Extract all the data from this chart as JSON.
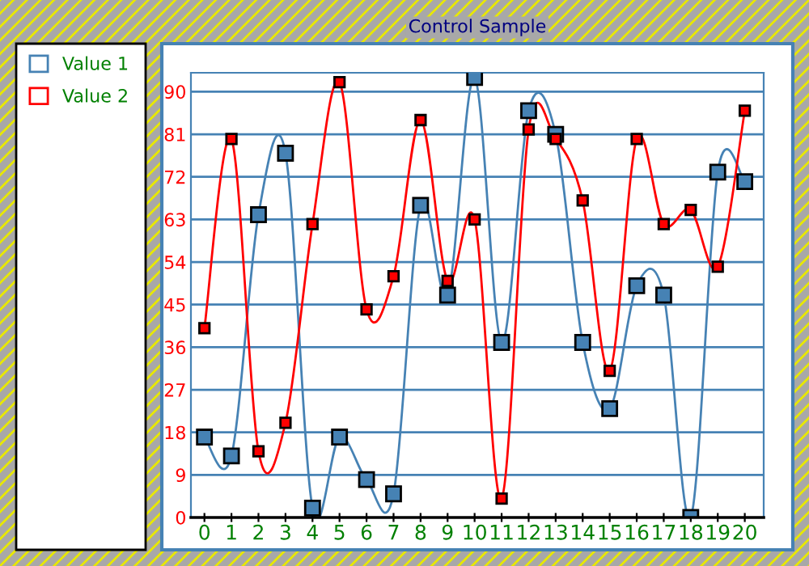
{
  "chart_data": {
    "type": "line",
    "title": "Control Sample",
    "x": [
      0,
      1,
      2,
      3,
      4,
      5,
      6,
      7,
      8,
      9,
      10,
      11,
      12,
      13,
      14,
      15,
      16,
      17,
      18,
      19,
      20
    ],
    "series": [
      {
        "name": "Value 1",
        "color": "#4682b4",
        "values": [
          17,
          13,
          64,
          77,
          2,
          17,
          8,
          5,
          66,
          47,
          93,
          37,
          86,
          81,
          37,
          23,
          49,
          47,
          0,
          73,
          71
        ]
      },
      {
        "name": "Value 2",
        "color": "#ff0000",
        "values": [
          40,
          80,
          14,
          20,
          62,
          92,
          44,
          51,
          84,
          50,
          63,
          4,
          82,
          80,
          67,
          31,
          80,
          62,
          65,
          53,
          86
        ]
      }
    ],
    "xlim": [
      -0.5,
      20.7
    ],
    "ylim": [
      0,
      94
    ],
    "xticks": [
      0,
      1,
      2,
      3,
      4,
      5,
      6,
      7,
      8,
      9,
      10,
      11,
      12,
      13,
      14,
      15,
      16,
      17,
      18,
      19,
      20
    ],
    "yticks": [
      0,
      9,
      18,
      27,
      36,
      45,
      54,
      63,
      72,
      81,
      90
    ],
    "grid": "y",
    "legend": "left",
    "marker": "square",
    "line_style": "solid"
  }
}
